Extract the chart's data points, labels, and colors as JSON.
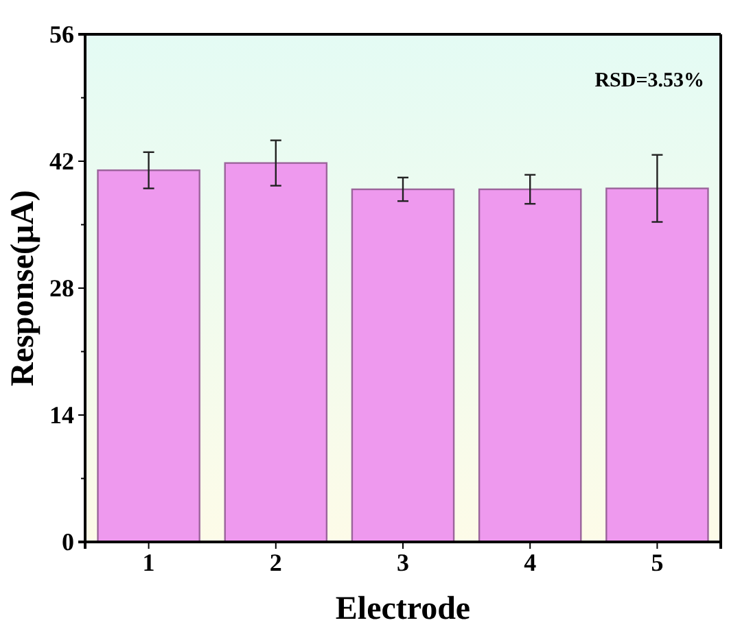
{
  "chart_data": {
    "type": "bar",
    "xlabel": "Electrode",
    "ylabel": "Response(μA)",
    "categories": [
      "1",
      "2",
      "3",
      "4",
      "5"
    ],
    "values": [
      41.0,
      41.8,
      38.9,
      38.9,
      39.0
    ],
    "errors": [
      2.0,
      2.5,
      1.3,
      1.6,
      3.7
    ],
    "color": "#ee99ee",
    "ylim": [
      0,
      56
    ],
    "yticks": [
      0,
      14,
      28,
      42,
      56
    ],
    "grid": false,
    "annotations": [
      "RSD=3.53%"
    ]
  }
}
